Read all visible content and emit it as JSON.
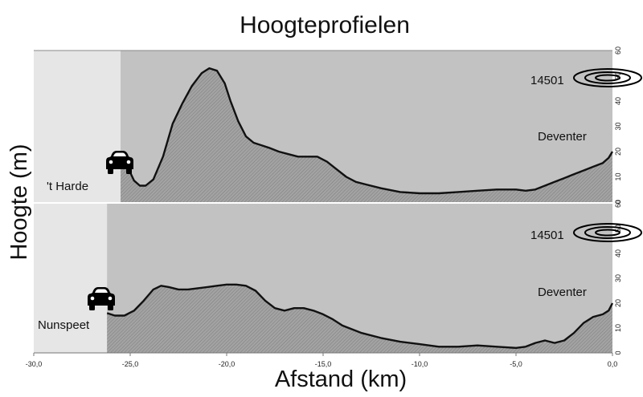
{
  "chart_data": {
    "type": "area",
    "title": "Hoogteprofielen",
    "xlabel": "Afstand (km)",
    "ylabel": "Hoogte (m)",
    "xlim": [
      -30,
      0
    ],
    "ylim": [
      0,
      60
    ],
    "x_ticks": [
      -30,
      -25,
      -20,
      -15,
      -10,
      -5,
      0
    ],
    "x_tick_labels": [
      "-30,0",
      "-25,0",
      "-20,0",
      "-15,0",
      "-10,0",
      "-5,0",
      "0,0"
    ],
    "y_ticks": [
      0,
      10,
      20,
      30,
      40,
      50,
      60
    ],
    "y_tick_labels": [
      "0",
      "10",
      "20",
      "30",
      "40",
      "50",
      "60"
    ],
    "colors": {
      "area_fill": "#9e9e9e",
      "background": "#c2c2c2",
      "line": "#111111",
      "outside": "#e6e6e6"
    },
    "panels": [
      {
        "start_label": "'t Harde",
        "end_label": "Deventer",
        "route_code": "14501",
        "start_km": -25.5,
        "marker_icon": "car-icon",
        "x": [
          -25.5,
          -25.2,
          -24.8,
          -24.5,
          -24.2,
          -23.8,
          -23.3,
          -22.8,
          -22.3,
          -21.8,
          -21.3,
          -20.9,
          -20.5,
          -20.1,
          -19.8,
          -19.4,
          -19.0,
          -18.6,
          -18.2,
          -17.8,
          -17.3,
          -16.8,
          -16.3,
          -15.8,
          -15.3,
          -14.8,
          -14.3,
          -13.8,
          -13.3,
          -12.8,
          -12.0,
          -11.0,
          -10.0,
          -9.0,
          -8.0,
          -7.0,
          -6.0,
          -5.0,
          -4.5,
          -4.0,
          -3.5,
          -3.0,
          -2.5,
          -2.0,
          -1.5,
          -1.0,
          -0.5,
          -0.2,
          0.0
        ],
        "y": [
          19,
          15,
          8.5,
          6.5,
          6.5,
          9,
          18,
          31,
          39,
          46,
          51,
          53,
          52,
          47,
          40,
          32,
          26,
          23.5,
          22.5,
          21.5,
          20,
          19,
          18,
          18,
          18,
          16,
          13,
          10,
          8,
          7,
          5.5,
          4,
          3.5,
          3.5,
          4,
          4.5,
          5,
          5,
          4.5,
          5,
          6.5,
          8,
          9.5,
          11,
          12.5,
          14,
          15.5,
          17.5,
          20
        ]
      },
      {
        "start_label": "Nunspeet",
        "end_label": "Deventer",
        "route_code": "14501",
        "start_km": -26.2,
        "marker_icon": "car-icon",
        "x": [
          -26.2,
          -25.8,
          -25.3,
          -24.8,
          -24.3,
          -23.8,
          -23.4,
          -23.0,
          -22.5,
          -22.0,
          -21.5,
          -21.0,
          -20.5,
          -20.0,
          -19.5,
          -19.0,
          -18.5,
          -18.0,
          -17.5,
          -17.0,
          -16.5,
          -16.0,
          -15.5,
          -15.0,
          -14.5,
          -14.0,
          -13.0,
          -12.0,
          -11.0,
          -10.0,
          -9.0,
          -8.0,
          -7.0,
          -6.0,
          -5.0,
          -4.5,
          -4.0,
          -3.5,
          -3.0,
          -2.5,
          -2.0,
          -1.5,
          -1.0,
          -0.5,
          -0.2,
          0.0
        ],
        "y": [
          16,
          15,
          15,
          17,
          21,
          25.5,
          27,
          26.5,
          25.5,
          25.5,
          26,
          26.5,
          27,
          27.5,
          27.5,
          27,
          25,
          21,
          18,
          17,
          18,
          18,
          17,
          15.5,
          13.5,
          11,
          8,
          6,
          4.5,
          3.5,
          2.5,
          2.5,
          3,
          2.5,
          2,
          2.5,
          4,
          5,
          4,
          5,
          8,
          12,
          14.5,
          15.5,
          17,
          20
        ]
      }
    ]
  }
}
